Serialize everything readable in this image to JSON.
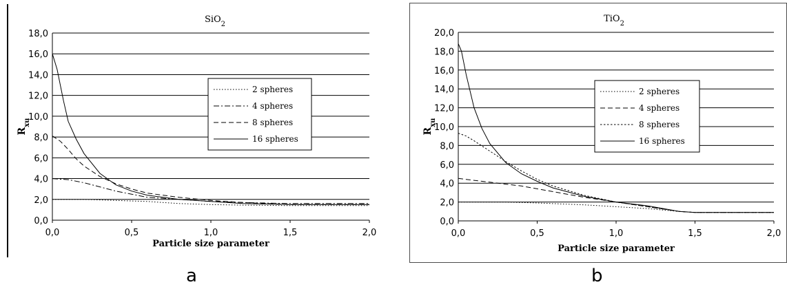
{
  "subfigure_labels": [
    "a",
    "b"
  ],
  "chart_data": [
    {
      "type": "line",
      "title": "SiO",
      "title_subscript": "2",
      "xlabel": "Particle size parameter",
      "ylabel": "R",
      "ylabel_subscript": "xu",
      "xlim": [
        0,
        2
      ],
      "ylim": [
        0,
        18
      ],
      "xticks": [
        "0,0",
        "0,5",
        "1,0",
        "1,5",
        "2,0"
      ],
      "yticks": [
        "0,0",
        "2,0",
        "4,0",
        "6,0",
        "8,0",
        "10,0",
        "12,0",
        "14,0",
        "16,0",
        "18,0"
      ],
      "grid": "horizontal",
      "legend_position": "center-right",
      "series": [
        {
          "name": "2 spheres",
          "style": "dotted",
          "x": [
            0,
            0.2,
            0.4,
            0.6,
            0.8,
            1.0,
            1.2,
            1.5,
            2.0
          ],
          "y": [
            2.0,
            2.0,
            1.9,
            1.8,
            1.6,
            1.5,
            1.45,
            1.4,
            1.4
          ]
        },
        {
          "name": "4 spheres",
          "style": "dashdot",
          "x": [
            0,
            0.1,
            0.2,
            0.3,
            0.4,
            0.5,
            0.6,
            0.8,
            1.0,
            1.2,
            1.5,
            2.0
          ],
          "y": [
            4.0,
            3.9,
            3.6,
            3.2,
            2.8,
            2.5,
            2.2,
            2.0,
            1.8,
            1.7,
            1.6,
            1.6
          ]
        },
        {
          "name": "8 spheres",
          "style": "dashed",
          "x": [
            0,
            0.05,
            0.1,
            0.15,
            0.2,
            0.3,
            0.4,
            0.5,
            0.6,
            0.8,
            1.0,
            1.2,
            1.5,
            2.0
          ],
          "y": [
            8.1,
            7.6,
            6.8,
            5.9,
            5.2,
            4.2,
            3.5,
            3.0,
            2.6,
            2.2,
            1.9,
            1.7,
            1.5,
            1.5
          ]
        },
        {
          "name": "16 spheres",
          "style": "solid",
          "x": [
            0,
            0.03,
            0.07,
            0.1,
            0.15,
            0.2,
            0.3,
            0.4,
            0.5,
            0.6,
            0.8,
            1.0,
            1.2,
            1.5,
            2.0
          ],
          "y": [
            16.0,
            14.5,
            11.5,
            9.5,
            7.8,
            6.4,
            4.5,
            3.4,
            2.8,
            2.4,
            2.0,
            1.8,
            1.6,
            1.5,
            1.5
          ]
        }
      ]
    },
    {
      "type": "line",
      "title": "TiO",
      "title_subscript": "2",
      "xlabel": "Particle size parameter",
      "ylabel": "R",
      "ylabel_subscript": "xu",
      "xlim": [
        0,
        2
      ],
      "ylim": [
        0,
        20
      ],
      "xticks": [
        "0,0",
        "0,5",
        "1,0",
        "1,5",
        "2,0"
      ],
      "yticks": [
        "0,0",
        "2,0",
        "4,0",
        "6,0",
        "8,0",
        "10,0",
        "12,0",
        "14,0",
        "16,0",
        "18,0",
        "20,0"
      ],
      "grid": "horizontal",
      "legend_position": "center-right",
      "series": [
        {
          "name": "2 spheres",
          "style": "dotted",
          "x": [
            0,
            0.3,
            0.5,
            0.8,
            1.0,
            1.2,
            1.4,
            1.5,
            2.0
          ],
          "y": [
            2.0,
            2.0,
            1.9,
            1.7,
            1.5,
            1.3,
            1.0,
            0.9,
            0.9
          ]
        },
        {
          "name": "4 spheres",
          "style": "dashed",
          "x": [
            0,
            0.05,
            0.1,
            0.2,
            0.3,
            0.4,
            0.5,
            0.6,
            0.8,
            1.0,
            1.2,
            1.4,
            1.5,
            2.0
          ],
          "y": [
            4.5,
            4.4,
            4.3,
            4.1,
            3.9,
            3.7,
            3.4,
            3.1,
            2.5,
            2.0,
            1.5,
            1.0,
            0.9,
            0.9
          ]
        },
        {
          "name": "8 spheres",
          "style": "dotted2",
          "x": [
            0,
            0.05,
            0.1,
            0.2,
            0.3,
            0.4,
            0.5,
            0.6,
            0.8,
            1.0,
            1.2,
            1.4,
            1.5,
            2.0
          ],
          "y": [
            9.3,
            9.0,
            8.5,
            7.4,
            6.3,
            5.3,
            4.4,
            3.7,
            2.7,
            2.0,
            1.5,
            1.0,
            0.9,
            0.9
          ]
        },
        {
          "name": "16 spheres",
          "style": "solid",
          "x": [
            0,
            0.02,
            0.05,
            0.1,
            0.15,
            0.2,
            0.3,
            0.4,
            0.5,
            0.6,
            0.8,
            1.0,
            1.2,
            1.4,
            1.5,
            2.0
          ],
          "y": [
            18.8,
            18.0,
            15.5,
            12.0,
            9.8,
            8.2,
            6.2,
            5.0,
            4.2,
            3.5,
            2.6,
            2.0,
            1.6,
            1.0,
            0.9,
            0.9
          ]
        }
      ]
    }
  ]
}
